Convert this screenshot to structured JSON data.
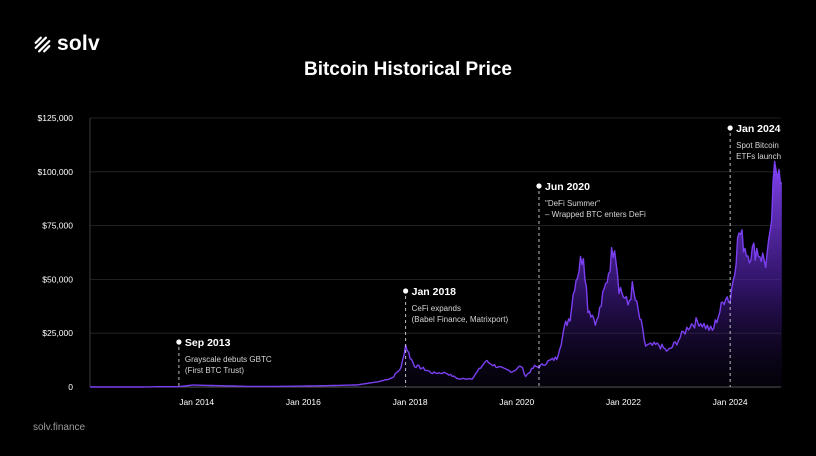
{
  "brand": {
    "name": "solv",
    "icon": "solv-logo-icon"
  },
  "footer": {
    "text": "solv.finance"
  },
  "colors": {
    "background": "#000000",
    "accent": "#7b3ff2",
    "grid": "#2a2a2a"
  },
  "chart_data": {
    "type": "area",
    "title": "Bitcoin Historical Price",
    "xlabel": "",
    "ylabel": "",
    "ylim": [
      0,
      125000
    ],
    "xlim": [
      "2012-01",
      "2024-11"
    ],
    "yticks": [
      0,
      25000,
      50000,
      75000,
      100000,
      125000
    ],
    "ytick_labels": [
      "0",
      "$25,000",
      "$50,000",
      "$75,000",
      "$100,000",
      "$125,000"
    ],
    "xticks": [
      "2014-01",
      "2016-01",
      "2018-01",
      "2020-01",
      "2022-01",
      "2024-01"
    ],
    "xtick_labels": [
      "Jan 2014",
      "Jan 2016",
      "Jan 2018",
      "Jan 2020",
      "Jan 2022",
      "Jan 2024"
    ],
    "grid": true,
    "series": [
      {
        "values": [
          [
            "2012-01",
            6
          ],
          [
            "2012-07",
            8
          ],
          [
            "2013-01",
            15
          ],
          [
            "2013-04",
            120
          ],
          [
            "2013-09",
            130
          ],
          [
            "2013-12",
            900
          ],
          [
            "2014-06",
            620
          ],
          [
            "2015-01",
            260
          ],
          [
            "2015-07",
            280
          ],
          [
            "2016-01",
            420
          ],
          [
            "2016-07",
            650
          ],
          [
            "2017-01",
            960
          ],
          [
            "2017-06",
            2500
          ],
          [
            "2017-09",
            4300
          ],
          [
            "2017-11",
            9000
          ],
          [
            "2017-12",
            19500
          ],
          [
            "2018-01",
            14000
          ],
          [
            "2018-02",
            10000
          ],
          [
            "2018-04",
            8500
          ],
          [
            "2018-06",
            6500
          ],
          [
            "2018-09",
            6600
          ],
          [
            "2018-12",
            3700
          ],
          [
            "2019-03",
            4000
          ],
          [
            "2019-06",
            12000
          ],
          [
            "2019-08",
            10000
          ],
          [
            "2019-10",
            8300
          ],
          [
            "2019-12",
            7200
          ],
          [
            "2020-02",
            9800
          ],
          [
            "2020-03",
            5000
          ],
          [
            "2020-05",
            9500
          ],
          [
            "2020-06",
            9300
          ],
          [
            "2020-08",
            11800
          ],
          [
            "2020-10",
            13500
          ],
          [
            "2020-12",
            29000
          ],
          [
            "2021-01",
            33000
          ],
          [
            "2021-02",
            48000
          ],
          [
            "2021-04",
            63000
          ],
          [
            "2021-05",
            37000
          ],
          [
            "2021-07",
            30000
          ],
          [
            "2021-09",
            47000
          ],
          [
            "2021-11",
            68000
          ],
          [
            "2021-12",
            47000
          ],
          [
            "2022-02",
            38000
          ],
          [
            "2022-03",
            46000
          ],
          [
            "2022-05",
            29000
          ],
          [
            "2022-06",
            19000
          ],
          [
            "2022-09",
            19500
          ],
          [
            "2022-11",
            16500
          ],
          [
            "2023-01",
            21000
          ],
          [
            "2023-04",
            29000
          ],
          [
            "2023-06",
            30500
          ],
          [
            "2023-09",
            26000
          ],
          [
            "2023-11",
            37000
          ],
          [
            "2023-12",
            43000
          ],
          [
            "2024-01",
            40000
          ],
          [
            "2024-03",
            72000
          ],
          [
            "2024-05",
            62000
          ],
          [
            "2024-07",
            64000
          ],
          [
            "2024-09",
            58000
          ],
          [
            "2024-10",
            68000
          ],
          [
            "2024-11",
            100000
          ],
          [
            "2024-12",
            106000
          ],
          [
            "2024-12-20",
            95000
          ]
        ]
      }
    ],
    "annotations": [
      {
        "date": "2013-09",
        "title": "Sep 2013",
        "lines": [
          "Grayscale debuts GBTC",
          "(First BTC Trust)"
        ]
      },
      {
        "date": "2017-12",
        "title": "Jan 2018",
        "lines": [
          "CeFi expands",
          "(Babel Finance, Matrixport)"
        ]
      },
      {
        "date": "2020-06",
        "title": "Jun 2020",
        "lines": [
          "\"DeFi Summer\"",
          "– Wrapped BTC enters DeFi"
        ]
      },
      {
        "date": "2024-01",
        "title": "Jan 2024",
        "lines": [
          "Spot Bitcoin",
          "ETFs launch"
        ]
      }
    ]
  }
}
